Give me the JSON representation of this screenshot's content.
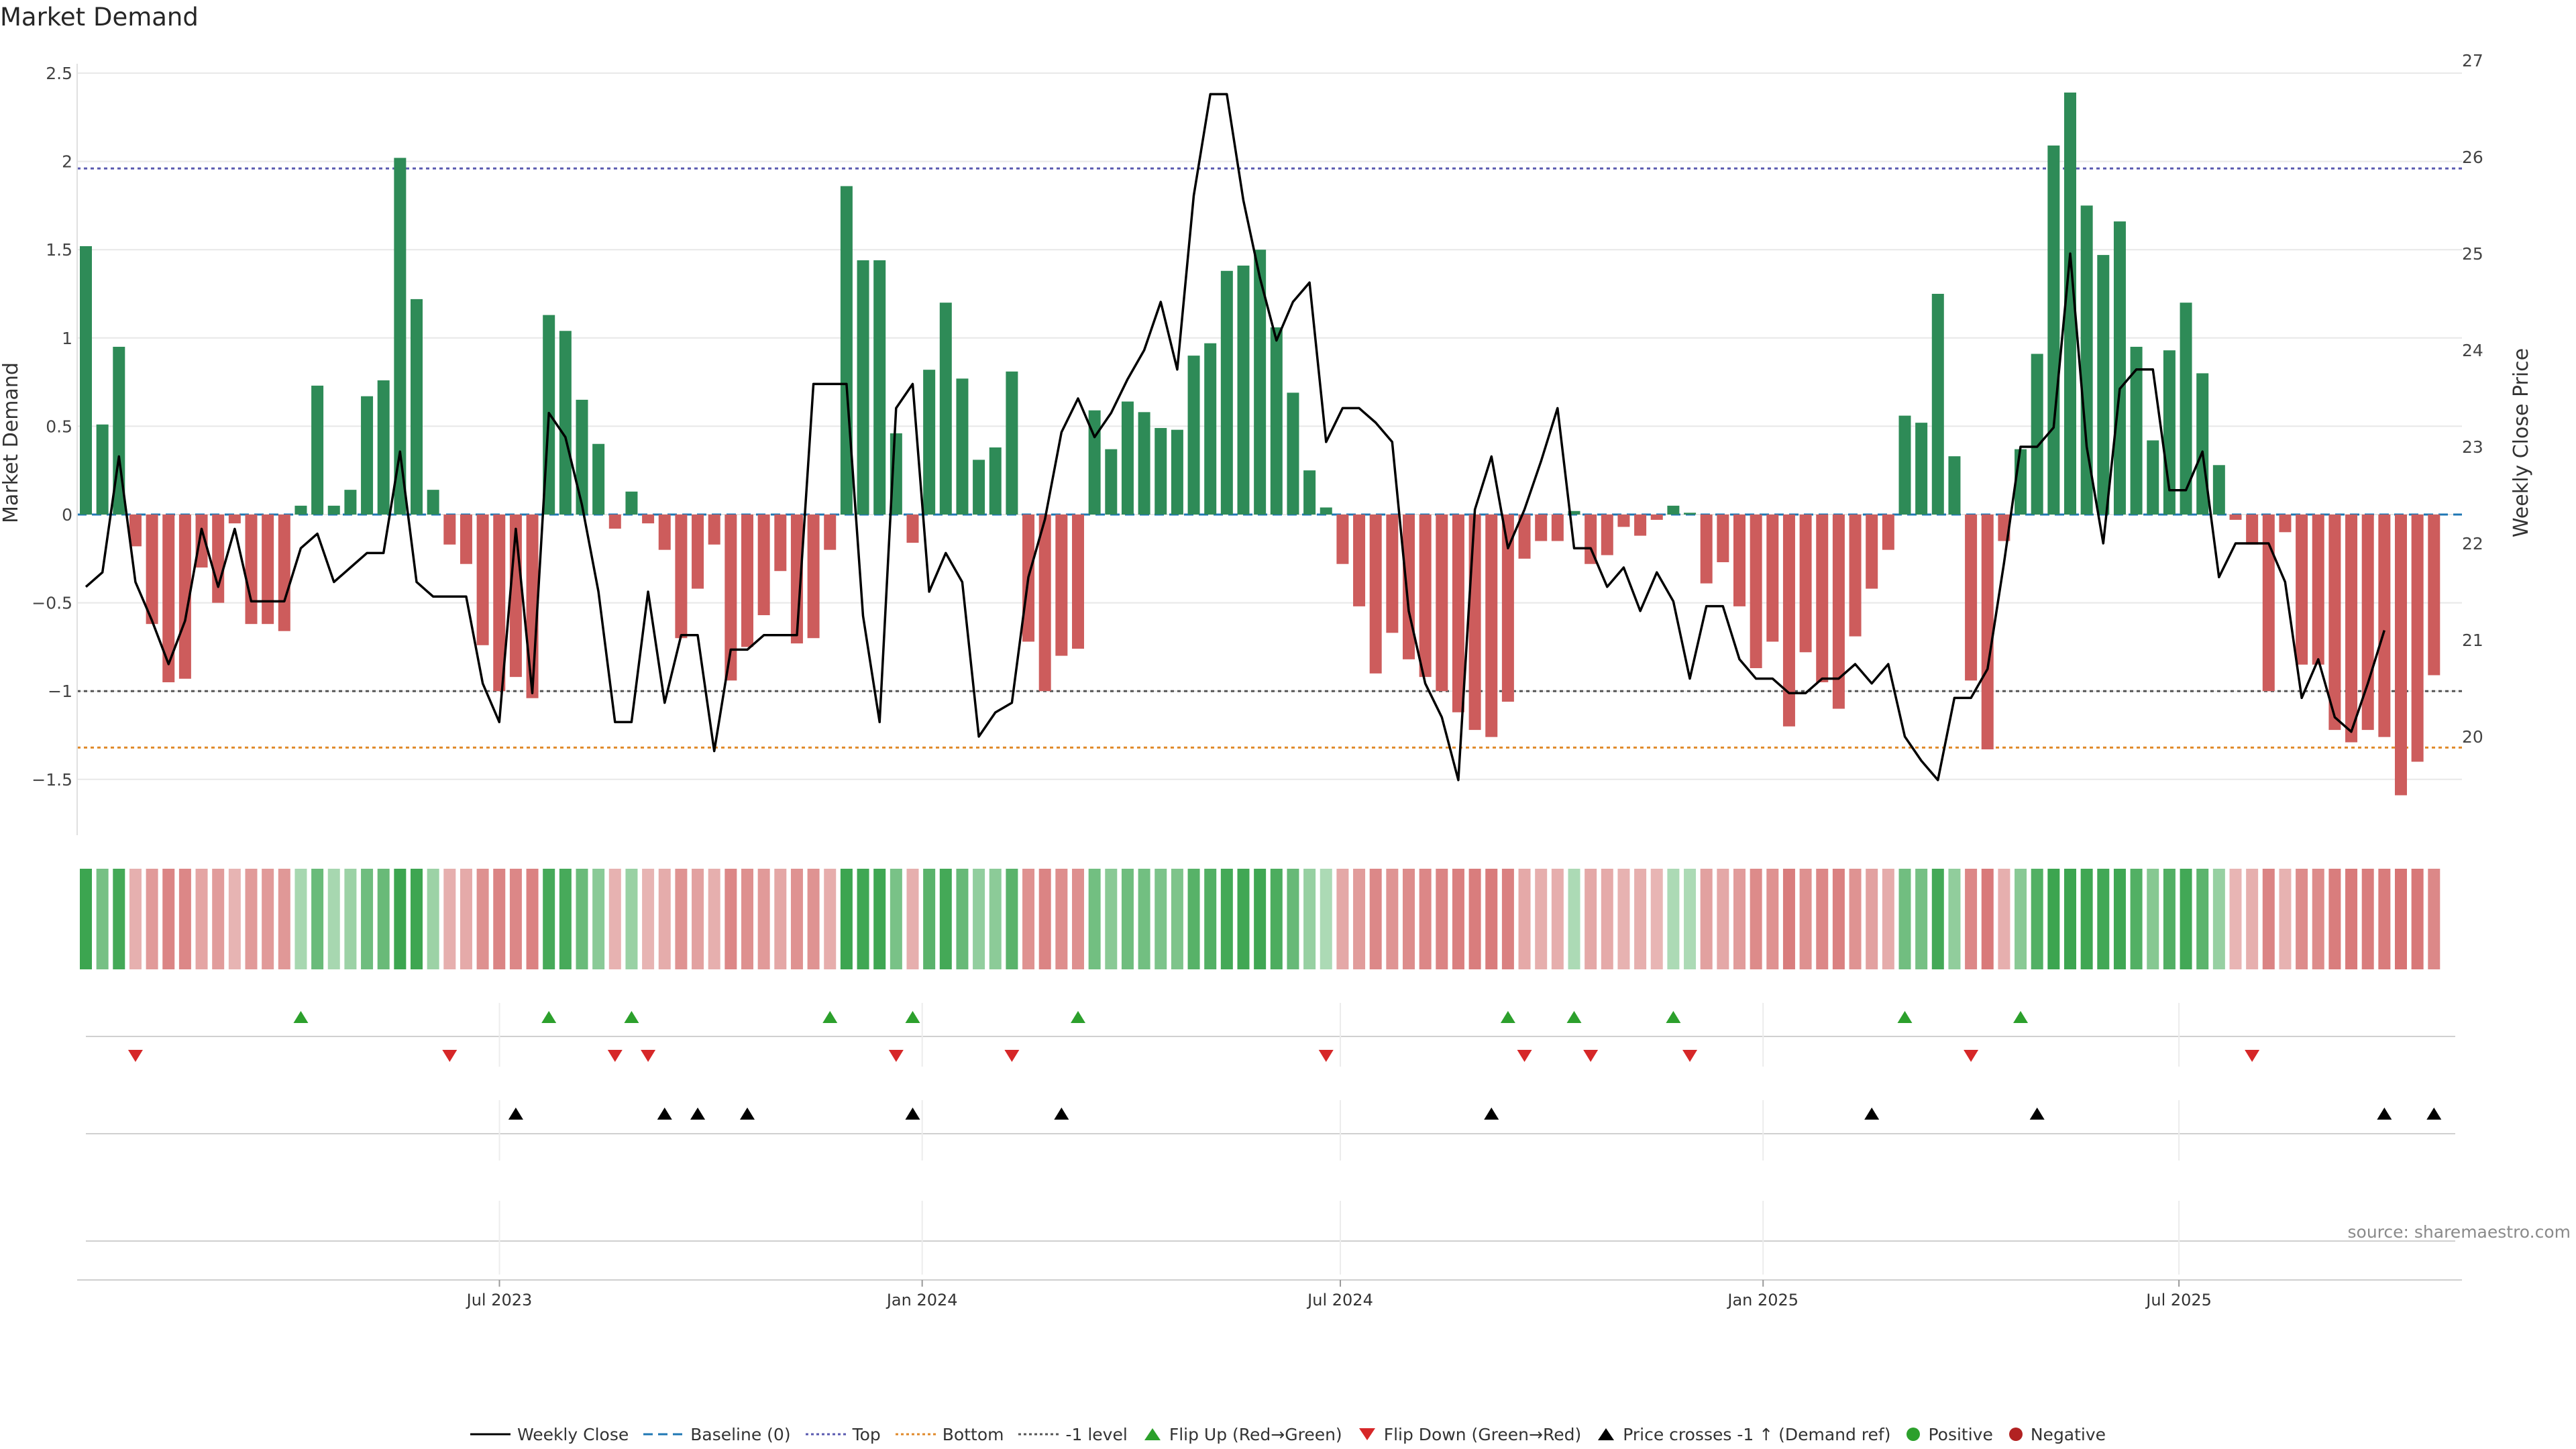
{
  "title": "Market Demand",
  "source": "source: sharemaestro.com",
  "colors": {
    "positive": "#2e8b57",
    "negative": "#cd5c5c",
    "price": "#000000",
    "top": "#5a5ab0",
    "bottom": "#e08a2a",
    "minus1": "#555555",
    "baseline": "#1f77b4",
    "flipUp": "#2ca02c",
    "flipDown": "#d62728"
  },
  "legend": [
    "Weekly Close",
    "Baseline (0)",
    "Top",
    "Bottom",
    "-1 level",
    "Flip Up (Red→Green)",
    "Flip Down (Green→Red)",
    "Price crosses -1 ↑ (Demand ref)",
    "Positive",
    "Negative"
  ],
  "chart_data": {
    "type": "bar+line",
    "ylabel": "Market Demand",
    "ylabel_right": "Weekly Close Price",
    "ylim": [
      -1.8,
      2.5
    ],
    "ylim_right": [
      19,
      27
    ],
    "yticks": [
      "2.5",
      "2",
      "1.5",
      "1",
      "0.5",
      "0",
      "−0.5",
      "−1",
      "−1.5"
    ],
    "yticks_values": [
      2.5,
      2,
      1.5,
      1,
      0.5,
      0,
      -0.5,
      -1,
      -1.5
    ],
    "yticks_right": [
      "27",
      "26",
      "25",
      "24",
      "23",
      "22",
      "21",
      "20"
    ],
    "yticks_right_values": [
      27,
      26,
      25,
      24,
      23,
      22,
      21,
      20
    ],
    "levels": {
      "top": 1.96,
      "bottom": -1.32,
      "minus1": -1.0,
      "baseline": 0
    },
    "x_range": [
      "2023-01-02",
      "2025-10-20"
    ],
    "xticks": [
      "Jul 2023",
      "Jan 2024",
      "Jul 2024",
      "Jan 2025",
      "Jul 2025"
    ],
    "xticks_dates": [
      "2023-07-01",
      "2024-01-01",
      "2024-07-01",
      "2025-01-01",
      "2025-07-01"
    ],
    "demand": [
      1.52,
      0.51,
      0.95,
      -0.18,
      -0.62,
      -0.95,
      -0.93,
      -0.3,
      -0.5,
      -0.05,
      -0.62,
      -0.62,
      -0.66,
      0.05,
      0.73,
      0.05,
      0.14,
      0.67,
      0.76,
      2.02,
      1.22,
      0.14,
      -0.17,
      -0.28,
      -0.74,
      -1.0,
      -0.92,
      -1.04,
      1.13,
      1.04,
      0.65,
      0.4,
      -0.08,
      0.13,
      -0.05,
      -0.2,
      -0.7,
      -0.42,
      -0.17,
      -0.94,
      -0.75,
      -0.57,
      -0.32,
      -0.73,
      -0.7,
      -0.2,
      1.86,
      1.44,
      1.44,
      0.46,
      -0.16,
      0.82,
      1.2,
      0.77,
      0.31,
      0.38,
      0.81,
      -0.72,
      -1.0,
      -0.8,
      -0.76,
      0.59,
      0.37,
      0.64,
      0.58,
      0.49,
      0.48,
      0.9,
      0.97,
      1.38,
      1.41,
      1.5,
      1.06,
      0.69,
      0.25,
      0.04,
      -0.28,
      -0.52,
      -0.9,
      -0.67,
      -0.82,
      -0.92,
      -1.0,
      -1.12,
      -1.22,
      -1.26,
      -1.06,
      -0.25,
      -0.15,
      -0.15,
      0.02,
      -0.28,
      -0.23,
      -0.07,
      -0.12,
      -0.03,
      0.05,
      0.01,
      -0.39,
      -0.27,
      -0.52,
      -0.87,
      -0.72,
      -1.2,
      -0.78,
      -0.95,
      -1.1,
      -0.69,
      -0.42,
      -0.2,
      0.56,
      0.52,
      1.25,
      0.33,
      -0.94,
      -1.33,
      -0.15,
      0.37,
      0.91,
      2.09,
      2.39,
      1.75,
      1.47,
      1.66,
      0.95,
      0.42,
      0.93,
      1.2,
      0.8,
      0.28,
      -0.03,
      -0.17,
      -1.0,
      -0.1,
      -0.85,
      -0.85,
      -1.22,
      -1.29,
      -1.22,
      -1.26,
      -1.59,
      -1.4,
      -0.91
    ],
    "price": [
      21.55,
      21.7,
      22.9,
      21.6,
      21.2,
      20.75,
      21.2,
      22.15,
      21.55,
      22.15,
      21.4,
      21.4,
      21.4,
      21.95,
      22.1,
      21.6,
      21.75,
      21.9,
      21.9,
      22.95,
      21.6,
      21.45,
      21.45,
      21.45,
      20.55,
      20.15,
      22.15,
      20.45,
      23.35,
      23.1,
      22.4,
      21.5,
      20.15,
      20.15,
      21.5,
      20.35,
      21.05,
      21.05,
      19.85,
      20.9,
      20.9,
      21.05,
      21.05,
      21.05,
      23.65,
      23.65,
      23.65,
      21.25,
      20.15,
      23.4,
      23.65,
      21.5,
      21.9,
      21.6,
      20.0,
      20.25,
      20.35,
      21.65,
      22.25,
      23.15,
      23.5,
      23.1,
      23.35,
      23.7,
      24.0,
      24.5,
      23.8,
      25.6,
      26.65,
      26.65,
      25.55,
      24.75,
      24.1,
      24.5,
      24.7,
      23.05,
      23.4,
      23.4,
      23.25,
      23.05,
      21.3,
      20.55,
      20.2,
      19.55,
      22.35,
      22.9,
      21.95,
      22.35,
      22.85,
      23.4,
      21.95,
      21.95,
      21.55,
      21.75,
      21.3,
      21.7,
      21.4,
      20.6,
      21.35,
      21.35,
      20.8,
      20.6,
      20.6,
      20.45,
      20.45,
      20.6,
      20.6,
      20.75,
      20.55,
      20.75,
      20.0,
      19.75,
      19.55,
      20.4,
      20.4,
      20.7,
      21.8,
      23.0,
      23.0,
      23.2,
      25.0,
      23.0,
      22.0,
      23.6,
      23.8,
      23.8,
      22.55,
      22.55,
      22.95,
      21.65,
      22.0,
      22.0,
      22.0,
      21.6,
      20.4,
      20.8,
      20.2,
      20.05,
      20.55,
      21.1
    ],
    "heat": [
      1.0,
      0.64,
      0.95,
      -0.37,
      -0.59,
      -0.79,
      -0.77,
      -0.48,
      -0.57,
      -0.33,
      -0.59,
      -0.59,
      -0.61,
      0.33,
      0.71,
      0.33,
      0.4,
      0.68,
      0.72,
      1.0,
      0.99,
      0.4,
      -0.38,
      -0.43,
      -0.68,
      -0.8,
      -0.77,
      -0.82,
      0.94,
      0.93,
      0.71,
      0.51,
      -0.35,
      0.42,
      -0.33,
      -0.41,
      -0.66,
      -0.52,
      -0.38,
      -0.77,
      -0.69,
      -0.59,
      -0.46,
      -0.67,
      -0.66,
      -0.4,
      1.0,
      0.98,
      0.98,
      0.62,
      -0.38,
      0.81,
      0.95,
      0.73,
      0.46,
      0.5,
      0.81,
      -0.67,
      -0.8,
      -0.71,
      -0.69,
      0.66,
      0.52,
      0.68,
      0.66,
      0.6,
      0.59,
      0.83,
      0.86,
      0.95,
      0.97,
      0.98,
      0.9,
      0.73,
      0.43,
      0.3,
      -0.45,
      -0.57,
      -0.76,
      -0.65,
      -0.72,
      -0.77,
      -0.8,
      -0.84,
      -0.87,
      -0.88,
      -0.83,
      -0.44,
      -0.39,
      -0.39,
      0.3,
      -0.45,
      -0.43,
      -0.35,
      -0.38,
      -0.32,
      0.3,
      0.3,
      -0.52,
      -0.45,
      -0.57,
      -0.74,
      -0.67,
      -0.87,
      -0.68,
      -0.77,
      -0.83,
      -0.66,
      -0.52,
      -0.41,
      0.67,
      0.64,
      0.95,
      0.47,
      -0.77,
      -0.9,
      -0.38,
      0.52,
      0.86,
      1.0,
      1.0,
      0.98,
      0.96,
      0.98,
      0.86,
      0.54,
      0.87,
      0.96,
      0.8,
      0.43,
      -0.32,
      -0.38,
      -0.8,
      -0.35,
      -0.73,
      -0.73,
      -0.87,
      -0.9,
      -0.87,
      -0.88,
      -0.96,
      -0.92,
      -0.76
    ],
    "flip_up": [
      13,
      28,
      33,
      45,
      50,
      60,
      86,
      90,
      96,
      110,
      117
    ],
    "flip_down": [
      3,
      22,
      32,
      34,
      49,
      56,
      75,
      87,
      91,
      97,
      114,
      131
    ],
    "price_cross": [
      26,
      35,
      37,
      40,
      50,
      59,
      85,
      108,
      118,
      139,
      142
    ]
  }
}
